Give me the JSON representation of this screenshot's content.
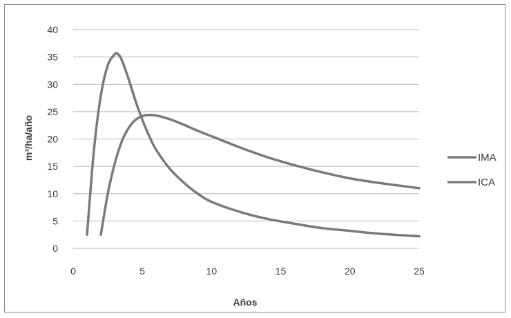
{
  "chart_data": {
    "type": "line",
    "title": "",
    "xlabel": "Años",
    "ylabel": "m³/ha/año",
    "xlim": [
      0,
      25
    ],
    "ylim": [
      0,
      40
    ],
    "x_ticks": [
      "0",
      "5",
      "10",
      "15",
      "20",
      "25"
    ],
    "y_ticks": [
      "0",
      "5",
      "10",
      "15",
      "20",
      "25",
      "30",
      "35",
      "40"
    ],
    "grid": "horizontal",
    "legend_position": "right",
    "series": [
      {
        "name": "IMA",
        "color": "#7a7a7a",
        "x": [
          2,
          2.5,
          3,
          3.5,
          4,
          4.5,
          5,
          5.5,
          6,
          7,
          8,
          9,
          10,
          12,
          14,
          16,
          18,
          20,
          22,
          25
        ],
        "y": [
          2.5,
          10,
          15.5,
          19.5,
          22,
          23.5,
          24.2,
          24.4,
          24.3,
          23.6,
          22.6,
          21.5,
          20.5,
          18.5,
          16.7,
          15.2,
          13.9,
          12.8,
          12,
          11
        ]
      },
      {
        "name": "ICA",
        "color": "#7a7a7a",
        "x": [
          1,
          1.5,
          2,
          2.5,
          3,
          3.2,
          3.5,
          4,
          4.5,
          5,
          5.5,
          6,
          7,
          8,
          9,
          10,
          12,
          14,
          16,
          18,
          20,
          22,
          25
        ],
        "y": [
          2.5,
          18,
          28,
          33.5,
          35.5,
          35.6,
          34.5,
          31,
          27,
          23.5,
          20.5,
          18,
          14.5,
          12,
          10,
          8.5,
          6.7,
          5.4,
          4.5,
          3.7,
          3.2,
          2.7,
          2.2
        ]
      }
    ]
  }
}
